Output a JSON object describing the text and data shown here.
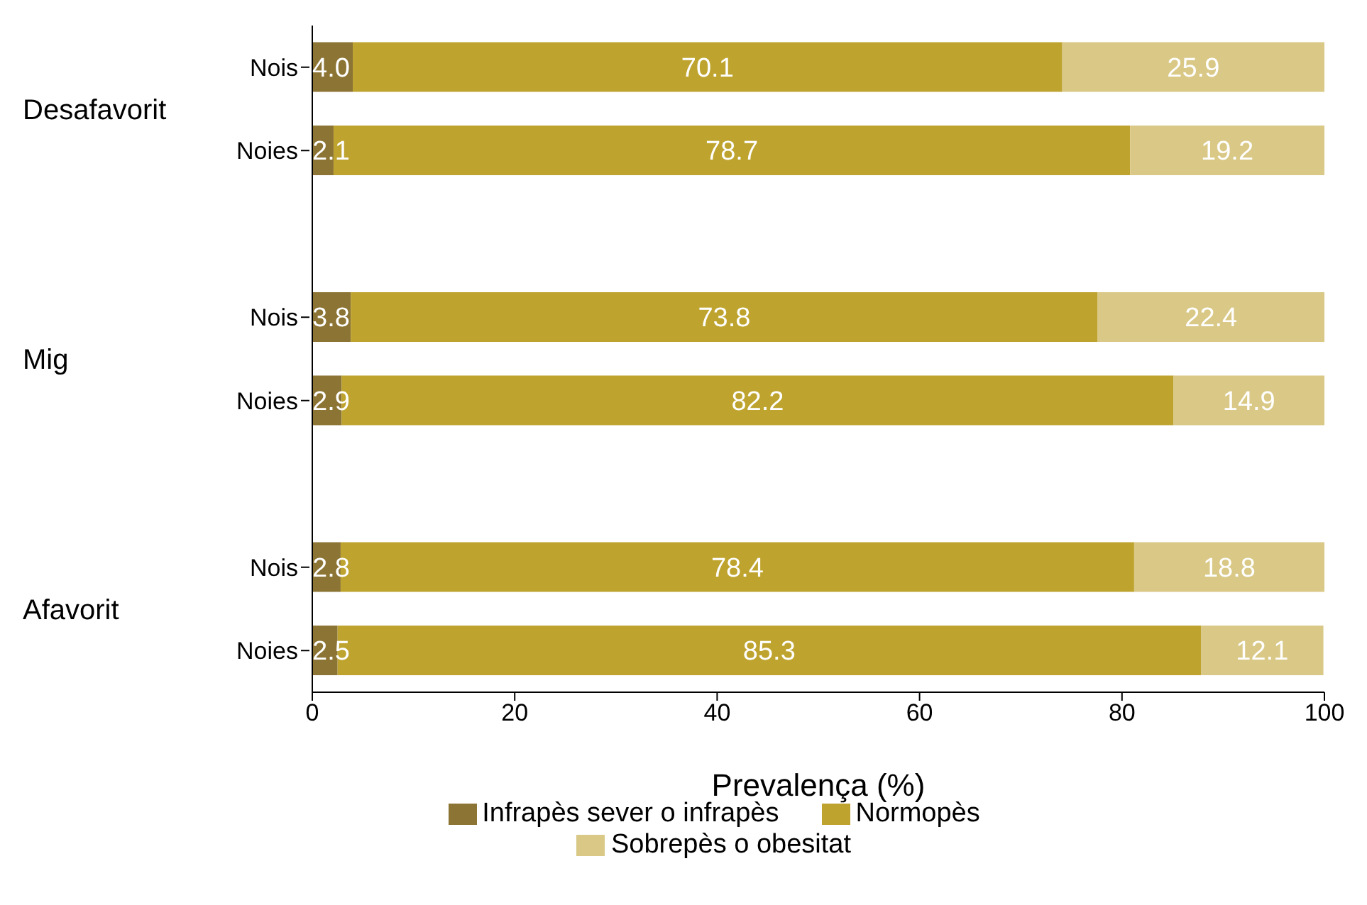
{
  "chart_data": {
    "type": "bar",
    "orientation": "horizontal",
    "stacked": true,
    "xlabel": "Prevalença (%)",
    "categories": [
      "Nois",
      "Noies",
      null,
      "Nois",
      "Noies",
      null,
      "Nois",
      "Noies"
    ],
    "series": [
      {
        "name": "Infrapès sever o infrapès",
        "color": "#8c7434",
        "values": [
          4.0,
          2.1,
          null,
          3.8,
          2.9,
          null,
          2.8,
          2.5
        ],
        "value_labels": [
          "4.0",
          "2.1",
          null,
          "3.8",
          "2.9",
          null,
          "2.8",
          "2.5"
        ]
      },
      {
        "name": "Normopès",
        "color": "#bea42f",
        "values": [
          70.1,
          78.7,
          null,
          73.8,
          82.2,
          null,
          78.4,
          85.3
        ],
        "value_labels": [
          "70.1",
          "78.7",
          null,
          "73.8",
          "82.2",
          null,
          "78.4",
          "85.3"
        ]
      },
      {
        "name": "Sobrepès o obesitat",
        "color": "#d9c886",
        "values": [
          25.9,
          19.2,
          null,
          22.4,
          14.9,
          null,
          18.8,
          12.1
        ],
        "value_labels": [
          "25.9",
          "19.2",
          null,
          "22.4",
          "14.9",
          null,
          "18.8",
          "12.1"
        ]
      }
    ],
    "annotations": [
      "Desafavorit",
      "Mig",
      "Afavorit"
    ],
    "xlim": [
      0,
      100
    ],
    "xticks": [
      0,
      20,
      40,
      60,
      80,
      100
    ],
    "grid": false,
    "legend": "bottom"
  }
}
